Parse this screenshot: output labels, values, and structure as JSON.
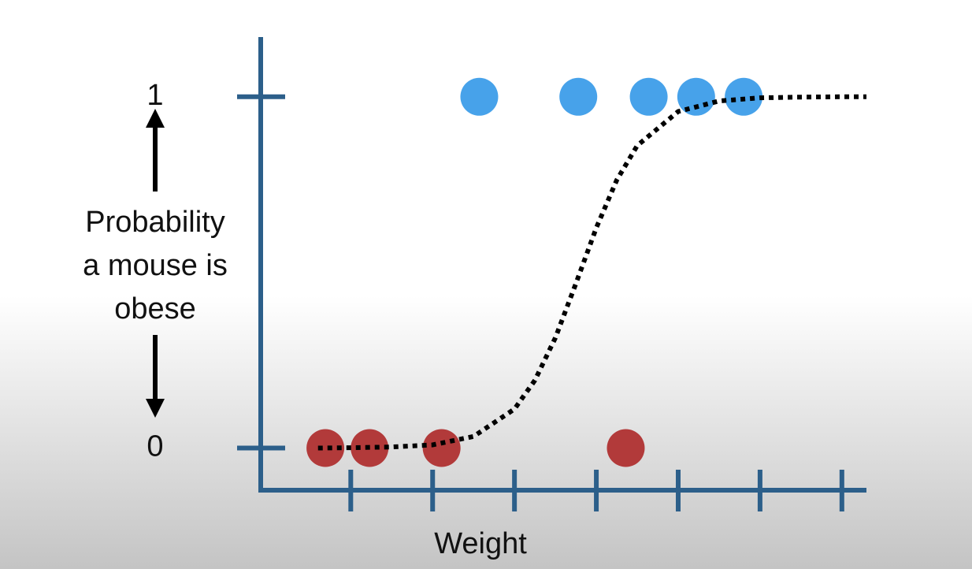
{
  "chart_data": {
    "type": "scatter",
    "ylabel": [
      "Probability",
      "a mouse is",
      "obese"
    ],
    "xlabel": "Weight",
    "axis_color": "#2c5f8a",
    "xlim": [
      -0.1,
      7.3
    ],
    "xticks": [
      1,
      2,
      3,
      4,
      5,
      6,
      7
    ],
    "ylim": [
      -0.12,
      1.17
    ],
    "yticks": [
      0,
      1
    ],
    "series": [
      {
        "type": "scatter",
        "color": "#b23a3a",
        "x": [
          0.69,
          1.23,
          2.11,
          4.36
        ],
        "values": [
          0,
          0,
          0,
          0
        ]
      },
      {
        "type": "scatter",
        "color": "#47a2ea",
        "x": [
          2.57,
          3.78,
          4.64,
          5.22,
          5.8
        ],
        "values": [
          1,
          1,
          1,
          1,
          1
        ]
      },
      {
        "type": "line",
        "style": "dotted",
        "color": "#000000",
        "x": [
          0.6,
          1.0,
          1.5,
          2.0,
          2.5,
          3.0,
          3.25,
          3.5,
          3.75,
          4.0,
          4.25,
          4.5,
          5.0,
          5.5,
          6.0,
          6.5,
          7.0,
          7.3
        ],
        "values": [
          0.0,
          0.001,
          0.003,
          0.009,
          0.033,
          0.111,
          0.193,
          0.314,
          0.468,
          0.627,
          0.763,
          0.861,
          0.958,
          0.988,
          0.997,
          0.999,
          1.0,
          1.0
        ]
      }
    ]
  }
}
